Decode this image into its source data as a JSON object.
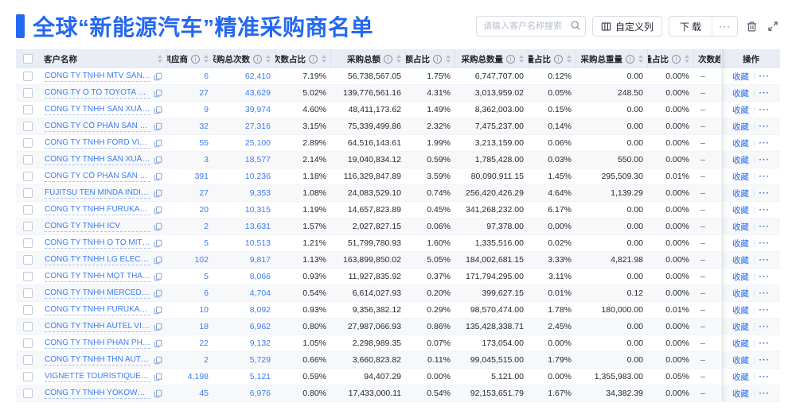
{
  "header": {
    "title": "全球“新能源汽车”精准采购商名单"
  },
  "toolbar": {
    "search_placeholder": "请输入客户名称搜索",
    "customize_label": "自定义列",
    "download_label": "下载",
    "download_more_label": "···",
    "icons": [
      "search-icon",
      "columns-icon",
      "trash-icon",
      "fullscreen-icon"
    ],
    "accent_color": "#2468f2"
  },
  "table": {
    "columns": [
      {
        "key": "name",
        "label": "客户名称",
        "info": false,
        "sort": true,
        "align": "left"
      },
      {
        "key": "supplier",
        "label": "供应商",
        "info": true,
        "sort": true,
        "align": "right"
      },
      {
        "key": "times",
        "label": "采购总次数",
        "info": true,
        "sort": true,
        "align": "right"
      },
      {
        "key": "times_pct",
        "label": "次数占比",
        "info": true,
        "sort": true,
        "align": "right"
      },
      {
        "key": "amount",
        "label": "采购总额",
        "info": true,
        "sort": true,
        "align": "right"
      },
      {
        "key": "amount_pct",
        "label": "总额占比",
        "info": true,
        "sort": true,
        "align": "right"
      },
      {
        "key": "qty",
        "label": "采购总数量",
        "info": true,
        "sort": true,
        "align": "right"
      },
      {
        "key": "qty_pct",
        "label": "数量占比",
        "info": true,
        "sort": true,
        "align": "right"
      },
      {
        "key": "weight",
        "label": "采购总重量",
        "info": true,
        "sort": true,
        "align": "right"
      },
      {
        "key": "weight_pct",
        "label": "重量占比",
        "info": true,
        "sort": true,
        "align": "right"
      },
      {
        "key": "trend",
        "label": "次数趋势",
        "info": false,
        "sort": false,
        "align": "left"
      },
      {
        "key": "op",
        "label": "操作",
        "info": false,
        "sort": false,
        "align": "center"
      }
    ],
    "trend_placeholder": "–",
    "op": {
      "favorite": "收藏",
      "divider": "|",
      "more": "···"
    },
    "link_color": "#3d7bf5",
    "rows": [
      {
        "name": "CÔNG TY TNHH MTV SẢN XUẤ...",
        "supplier": "6",
        "times": "62,410",
        "times_pct": "7.19%",
        "amount": "56,738,567.05",
        "amount_pct": "1.75%",
        "qty": "6,747,707.00",
        "qty_pct": "0.12%",
        "weight": "0.00",
        "weight_pct": "0.00%"
      },
      {
        "name": "CÔNG TY Ô TÔ TOYOTA VIỆT ...",
        "supplier": "27",
        "times": "43,629",
        "times_pct": "5.02%",
        "amount": "139,776,561.16",
        "amount_pct": "4.31%",
        "qty": "3,013,959.02",
        "qty_pct": "0.05%",
        "weight": "248.50",
        "weight_pct": "0.00%"
      },
      {
        "name": "CÔNG TY TNHH SẢN XUẤT VÀ ...",
        "supplier": "9",
        "times": "39,974",
        "times_pct": "4.60%",
        "amount": "48,411,173.62",
        "amount_pct": "1.49%",
        "qty": "8,362,003.00",
        "qty_pct": "0.15%",
        "weight": "0.00",
        "weight_pct": "0.00%"
      },
      {
        "name": "CÔNG TY CỔ PHẦN SẢN XUẤT...",
        "supplier": "32",
        "times": "27,316",
        "times_pct": "3.15%",
        "amount": "75,339,499.86",
        "amount_pct": "2.32%",
        "qty": "7,475,237.00",
        "qty_pct": "0.14%",
        "weight": "0.00",
        "weight_pct": "0.00%"
      },
      {
        "name": "CÔNG TY TNHH FORD VIỆT NAM",
        "supplier": "55",
        "times": "25,100",
        "times_pct": "2.89%",
        "amount": "64,516,143.61",
        "amount_pct": "1.99%",
        "qty": "3,213,159.00",
        "qty_pct": "0.06%",
        "weight": "0.00",
        "weight_pct": "0.00%"
      },
      {
        "name": "CÔNG TY TNHH SẢN XUẤT VÀ ...",
        "supplier": "3",
        "times": "18,577",
        "times_pct": "2.14%",
        "amount": "19,040,834.12",
        "amount_pct": "0.59%",
        "qty": "1,785,428.00",
        "qty_pct": "0.03%",
        "weight": "550.00",
        "weight_pct": "0.00%"
      },
      {
        "name": "CÔNG TY CỔ PHẦN SẢN XUẤT...",
        "supplier": "391",
        "times": "10,236",
        "times_pct": "1.18%",
        "amount": "116,329,847.89",
        "amount_pct": "3.59%",
        "qty": "80,090,911.15",
        "qty_pct": "1.45%",
        "weight": "295,509.30",
        "weight_pct": "0.01%"
      },
      {
        "name": "FUJITSU TEN MINDA INDIA PVT...",
        "supplier": "27",
        "times": "9,353",
        "times_pct": "1.08%",
        "amount": "24,083,529.10",
        "amount_pct": "0.74%",
        "qty": "256,420,426.29",
        "qty_pct": "4.64%",
        "weight": "1,139.29",
        "weight_pct": "0.00%"
      },
      {
        "name": "CÔNG TY TNHH FURUKAWA A...",
        "supplier": "20",
        "times": "10,315",
        "times_pct": "1.19%",
        "amount": "14,657,823.89",
        "amount_pct": "0.45%",
        "qty": "341,268,232.00",
        "qty_pct": "6.17%",
        "weight": "0.00",
        "weight_pct": "0.00%"
      },
      {
        "name": "CÔNG TY TNHH ICV",
        "supplier": "2",
        "times": "13,631",
        "times_pct": "1.57%",
        "amount": "2,027,827.15",
        "amount_pct": "0.06%",
        "qty": "97,378.00",
        "qty_pct": "0.00%",
        "weight": "0.00",
        "weight_pct": "0.00%"
      },
      {
        "name": "CÔNG TY TNHH Ô TÔ MITSUBI...",
        "supplier": "5",
        "times": "10,513",
        "times_pct": "1.21%",
        "amount": "51,799,780.93",
        "amount_pct": "1.60%",
        "qty": "1,335,516.00",
        "qty_pct": "0.02%",
        "weight": "0.00",
        "weight_pct": "0.00%"
      },
      {
        "name": "CÔNG TY TNHH LG ELECTRON...",
        "supplier": "102",
        "times": "9,817",
        "times_pct": "1.13%",
        "amount": "163,899,850.02",
        "amount_pct": "5.05%",
        "qty": "184,002,681.15",
        "qty_pct": "3.33%",
        "weight": "4,821.98",
        "weight_pct": "0.00%"
      },
      {
        "name": "CÔNG TY TNHH MỘT THÀNH V...",
        "supplier": "5",
        "times": "8,066",
        "times_pct": "0.93%",
        "amount": "11,927,835.92",
        "amount_pct": "0.37%",
        "qty": "171,794,295.00",
        "qty_pct": "3.11%",
        "weight": "0.00",
        "weight_pct": "0.00%"
      },
      {
        "name": "CÔNG TY TNHH MERCEDES–B...",
        "supplier": "6",
        "times": "4,704",
        "times_pct": "0.54%",
        "amount": "6,614,027.93",
        "amount_pct": "0.20%",
        "qty": "399,627.15",
        "qty_pct": "0.01%",
        "weight": "0.12",
        "weight_pct": "0.00%"
      },
      {
        "name": "CÔNG TY TNHH FURUKAWA A...",
        "supplier": "10",
        "times": "8,092",
        "times_pct": "0.93%",
        "amount": "9,356,382.12",
        "amount_pct": "0.29%",
        "qty": "98,570,474.00",
        "qty_pct": "1.78%",
        "weight": "180,000.00",
        "weight_pct": "0.01%"
      },
      {
        "name": "CÔNG TY TNHH AUTEL VIỆT N...",
        "supplier": "18",
        "times": "6,962",
        "times_pct": "0.80%",
        "amount": "27,987,066.93",
        "amount_pct": "0.86%",
        "qty": "135,428,338.71",
        "qty_pct": "2.45%",
        "weight": "0.00",
        "weight_pct": "0.00%"
      },
      {
        "name": "CÔNG TY TNHH PHÂN PHỐI T...",
        "supplier": "22",
        "times": "9,132",
        "times_pct": "1.05%",
        "amount": "2,298,989.35",
        "amount_pct": "0.07%",
        "qty": "173,054.00",
        "qty_pct": "0.00%",
        "weight": "0.00",
        "weight_pct": "0.00%"
      },
      {
        "name": "CÔNG TY TNHH THN AUTOPAR...",
        "supplier": "2",
        "times": "5,729",
        "times_pct": "0.66%",
        "amount": "3,660,823.82",
        "amount_pct": "0.11%",
        "qty": "99,045,515.00",
        "qty_pct": "1.79%",
        "weight": "0.00",
        "weight_pct": "0.00%"
      },
      {
        "name": "VIGNETTE TOURISTIQUE G UNI...",
        "supplier": "4,198",
        "times": "5,121",
        "times_pct": "0.59%",
        "amount": "94,407.29",
        "amount_pct": "0.00%",
        "qty": "5,121.00",
        "qty_pct": "0.00%",
        "weight": "1,355,983.00",
        "weight_pct": "0.05%"
      },
      {
        "name": "CÔNG TY TNHH YOKOWO VIỆT...",
        "supplier": "45",
        "times": "6,976",
        "times_pct": "0.80%",
        "amount": "17,433,000.11",
        "amount_pct": "0.54%",
        "qty": "92,153,651.79",
        "qty_pct": "1.67%",
        "weight": "34,382.39",
        "weight_pct": "0.00%"
      }
    ]
  }
}
